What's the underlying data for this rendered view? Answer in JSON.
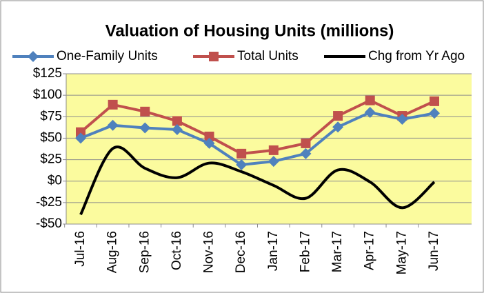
{
  "chart_data": {
    "type": "line",
    "title": "Valuation of Housing Units (millions)",
    "categories": [
      "Jul-16",
      "Aug-16",
      "Sep-16",
      "Oct-16",
      "Nov-16",
      "Dec-16",
      "Jan-17",
      "Feb-17",
      "Mar-17",
      "Apr-17",
      "May-17",
      "Jun-17"
    ],
    "series": [
      {
        "name": "One-Family Units",
        "color": "#4f81bd",
        "marker": "diamond",
        "values": [
          50,
          65,
          62,
          60,
          44,
          19,
          23,
          32,
          63,
          80,
          72,
          79
        ]
      },
      {
        "name": "Total Units",
        "color": "#c0504d",
        "marker": "square",
        "values": [
          57,
          89,
          81,
          70,
          52,
          32,
          36,
          44,
          76,
          94,
          76,
          93
        ]
      },
      {
        "name": "Chg from Yr Ago",
        "color": "#000000",
        "smooth": true,
        "values": [
          -39,
          38,
          15,
          4,
          21,
          11,
          -5,
          -20,
          13,
          -1,
          -31,
          -1
        ]
      }
    ],
    "ylim": [
      -50,
      125
    ],
    "yticks": [
      {
        "value": -50,
        "label": "-$50"
      },
      {
        "value": -25,
        "label": "-$25"
      },
      {
        "value": 0,
        "label": "$0"
      },
      {
        "value": 25,
        "label": "$25"
      },
      {
        "value": 50,
        "label": "$50"
      },
      {
        "value": 75,
        "label": "$75"
      },
      {
        "value": 100,
        "label": "$100"
      },
      {
        "value": 125,
        "label": "$125"
      }
    ],
    "grid": true,
    "legend": "top",
    "plot_background": "#fbfb9e"
  }
}
